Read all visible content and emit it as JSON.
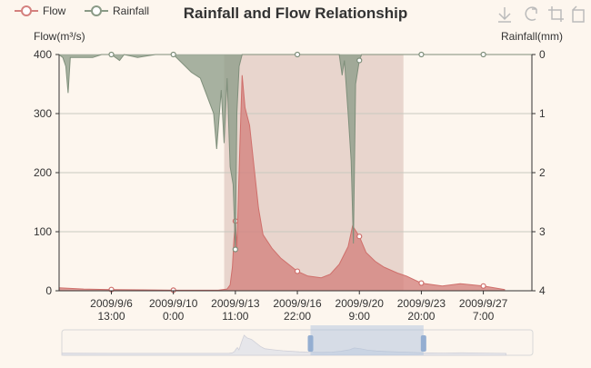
{
  "chart_data": {
    "type": "area",
    "title": "Rainfall and Flow Relationship",
    "legend": {
      "placement": "top-left",
      "items": [
        {
          "name": "Flow",
          "color": "#d4817e"
        },
        {
          "name": "Rainfall",
          "color": "#8a9a86"
        }
      ]
    },
    "y_left": {
      "label": "Flow(m³/s)",
      "min": 0,
      "max": 400,
      "ticks": [
        "0",
        "100",
        "200",
        "300",
        "400"
      ]
    },
    "y_right": {
      "label": "Rainfall(mm)",
      "min": 0,
      "max": 4,
      "inverse": true,
      "ticks": [
        "0",
        "1",
        "2",
        "3",
        "4"
      ]
    },
    "x_axis": {
      "start": "2009-09-03 15:00",
      "end": "2009-09-30 00:00",
      "ticks": [
        {
          "label": [
            "2009/9/6",
            "13:00"
          ],
          "t": "2009-09-06 13:00"
        },
        {
          "label": [
            "2009/9/10",
            "0:00"
          ],
          "t": "2009-09-10 00:00"
        },
        {
          "label": [
            "2009/9/13",
            "11:00"
          ],
          "t": "2009-09-13 11:00"
        },
        {
          "label": [
            "2009/9/16",
            "22:00"
          ],
          "t": "2009-09-16 22:00"
        },
        {
          "label": [
            "2009/9/20",
            "9:00"
          ],
          "t": "2009-09-20 09:00"
        },
        {
          "label": [
            "2009/9/23",
            "20:00"
          ],
          "t": "2009-09-23 20:00"
        },
        {
          "label": [
            "2009/9/27",
            "7:00"
          ],
          "t": "2009-09-27 07:00"
        }
      ]
    },
    "grid": true,
    "highlight_range": {
      "start": "2009-09-12 20:00",
      "end": "2009-09-22 20:00",
      "color": "#e8d5cd"
    },
    "series": [
      {
        "name": "Flow",
        "color": "#d4817e",
        "points": [
          [
            "2009-09-03 15:00",
            5
          ],
          [
            "2009-09-05 00:00",
            3
          ],
          [
            "2009-09-06 13:00",
            2
          ],
          [
            "2009-09-08 06:00",
            1.5
          ],
          [
            "2009-09-10 00:00",
            1
          ],
          [
            "2009-09-12 12:00",
            1
          ],
          [
            "2009-09-13 00:00",
            3
          ],
          [
            "2009-09-13 04:00",
            10
          ],
          [
            "2009-09-13 07:00",
            40
          ],
          [
            "2009-09-13 09:00",
            85
          ],
          [
            "2009-09-13 11:00",
            118
          ],
          [
            "2009-09-13 13:00",
            72
          ],
          [
            "2009-09-13 17:00",
            245
          ],
          [
            "2009-09-13 20:00",
            365
          ],
          [
            "2009-09-14 00:00",
            310
          ],
          [
            "2009-09-14 06:00",
            280
          ],
          [
            "2009-09-14 12:00",
            210
          ],
          [
            "2009-09-14 18:00",
            140
          ],
          [
            "2009-09-15 00:00",
            95
          ],
          [
            "2009-09-15 12:00",
            72
          ],
          [
            "2009-09-16 00:00",
            55
          ],
          [
            "2009-09-16 22:00",
            33
          ],
          [
            "2009-09-17 12:00",
            25
          ],
          [
            "2009-09-18 06:00",
            22
          ],
          [
            "2009-09-18 18:00",
            28
          ],
          [
            "2009-09-19 06:00",
            45
          ],
          [
            "2009-09-19 18:00",
            75
          ],
          [
            "2009-09-20 00:00",
            110
          ],
          [
            "2009-09-20 09:00",
            92
          ],
          [
            "2009-09-20 18:00",
            65
          ],
          [
            "2009-09-21 06:00",
            50
          ],
          [
            "2009-09-21 18:00",
            40
          ],
          [
            "2009-09-22 12:00",
            30
          ],
          [
            "2009-09-23 00:00",
            25
          ],
          [
            "2009-09-23 20:00",
            13
          ],
          [
            "2009-09-25 00:00",
            8
          ],
          [
            "2009-09-26 00:00",
            12
          ],
          [
            "2009-09-27 07:00",
            8
          ],
          [
            "2009-09-28 12:00",
            2
          ]
        ]
      },
      {
        "name": "Rainfall",
        "color": "#8a9a86",
        "points": [
          [
            "2009-09-03 15:00",
            0
          ],
          [
            "2009-09-03 20:00",
            0.05
          ],
          [
            "2009-09-04 00:00",
            0.2
          ],
          [
            "2009-09-04 03:00",
            0.65
          ],
          [
            "2009-09-04 06:00",
            0.05
          ],
          [
            "2009-09-05 12:00",
            0.05
          ],
          [
            "2009-09-06 00:00",
            0
          ],
          [
            "2009-09-06 13:00",
            0
          ],
          [
            "2009-09-07 00:00",
            0.1
          ],
          [
            "2009-09-07 06:00",
            0
          ],
          [
            "2009-09-08 00:00",
            0.05
          ],
          [
            "2009-09-09 00:00",
            0
          ],
          [
            "2009-09-10 00:00",
            0
          ],
          [
            "2009-09-11 00:00",
            0.3
          ],
          [
            "2009-09-11 12:00",
            0.4
          ],
          [
            "2009-09-12 06:00",
            1.0
          ],
          [
            "2009-09-12 10:00",
            1.6
          ],
          [
            "2009-09-12 16:00",
            0.6
          ],
          [
            "2009-09-12 20:00",
            1.5
          ],
          [
            "2009-09-13 00:00",
            0.4
          ],
          [
            "2009-09-13 04:00",
            1.9
          ],
          [
            "2009-09-13 08:00",
            2.2
          ],
          [
            "2009-09-13 11:00",
            3.3
          ],
          [
            "2009-09-13 13:00",
            1.0
          ],
          [
            "2009-09-13 16:00",
            0.2
          ],
          [
            "2009-09-13 20:00",
            0
          ],
          [
            "2009-09-19 06:00",
            0
          ],
          [
            "2009-09-19 10:00",
            0.35
          ],
          [
            "2009-09-19 13:00",
            0.1
          ],
          [
            "2009-09-19 18:00",
            1.0
          ],
          [
            "2009-09-19 22:00",
            1.8
          ],
          [
            "2009-09-20 01:00",
            3.2
          ],
          [
            "2009-09-20 04:00",
            0.5
          ],
          [
            "2009-09-20 09:00",
            0.1
          ],
          [
            "2009-09-20 12:00",
            0
          ],
          [
            "2009-09-30 00:00",
            0
          ]
        ]
      }
    ]
  },
  "toolbar": {
    "buttons": [
      {
        "name": "save-as-image"
      },
      {
        "name": "restore"
      },
      {
        "name": "zoom"
      },
      {
        "name": "zoom-back"
      }
    ]
  },
  "data_zoom": {
    "start_percent": 52.8,
    "end_percent": 76.8
  }
}
